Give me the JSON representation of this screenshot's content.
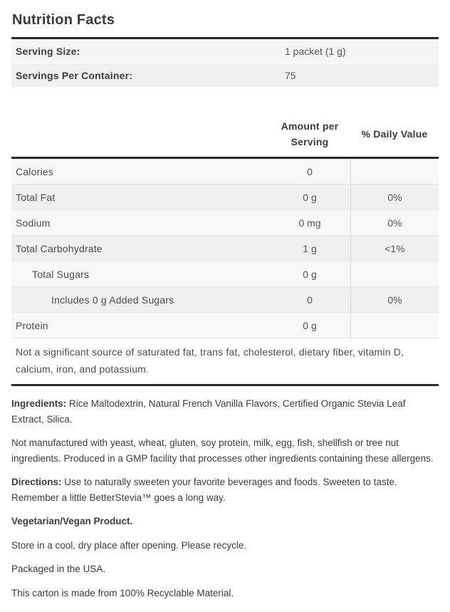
{
  "title": "Nutrition Facts",
  "serving_info": {
    "rows": [
      {
        "label": "Serving Size:",
        "value": "1 packet (1 g)"
      },
      {
        "label": "Servings Per Container:",
        "value": "75"
      }
    ]
  },
  "nutrition_table": {
    "headers": {
      "amount": "Amount per Serving",
      "daily_value": "% Daily Value"
    },
    "rows": [
      {
        "label": "Calories",
        "amount": "0",
        "daily_value": "",
        "indent": 0
      },
      {
        "label": "Total Fat",
        "amount": "0 g",
        "daily_value": "0%",
        "indent": 0
      },
      {
        "label": "Sodium",
        "amount": "0 mg",
        "daily_value": "0%",
        "indent": 0
      },
      {
        "label": "Total Carbohydrate",
        "amount": "1 g",
        "daily_value": "<1%",
        "indent": 0
      },
      {
        "label": "Total Sugars",
        "amount": "0 g",
        "daily_value": "",
        "indent": 1
      },
      {
        "label": "Includes 0 g Added Sugars",
        "amount": "0",
        "daily_value": "0%",
        "indent": 2
      },
      {
        "label": "Protein",
        "amount": "0 g",
        "daily_value": "",
        "indent": 0
      }
    ],
    "footnote": "Not a significant source of saturated fat, trans fat, cholesterol, dietary fiber, vitamin D, calcium, iron, and potassium."
  },
  "details": {
    "ingredients_label": "Ingredients:",
    "ingredients_text": " Rice Maltodextrin, Natural French Vanilla Flavors, Certified Organic Stevia Leaf Extract, Silica.",
    "allergen_text": "Not manufactured with yeast, wheat, gluten, soy protein, milk, egg, fish, shellfish or tree nut ingredients. Produced in a GMP facility that processes other ingredients containing these allergens.",
    "directions_label": "Directions:",
    "directions_text": " Use to naturally sweeten your favorite beverages and foods. Sweeten to taste. Remember a little BetterStevia™ goes a long way.",
    "vegetarian_text": "Vegetarian/Vegan Product.",
    "storage_text": "Store in a cool, dry place after opening. Please recycle.",
    "packaging_text": "Packaged in the USA.",
    "recyclable_text": "This carton is made from 100% Recyclable Material."
  },
  "colors": {
    "rule": "#2b2b2b",
    "stripe_light": "#f8f8f8",
    "stripe_dark": "#efefef",
    "column_divider": "#d5d5d5",
    "text": "#3c3c3c"
  }
}
